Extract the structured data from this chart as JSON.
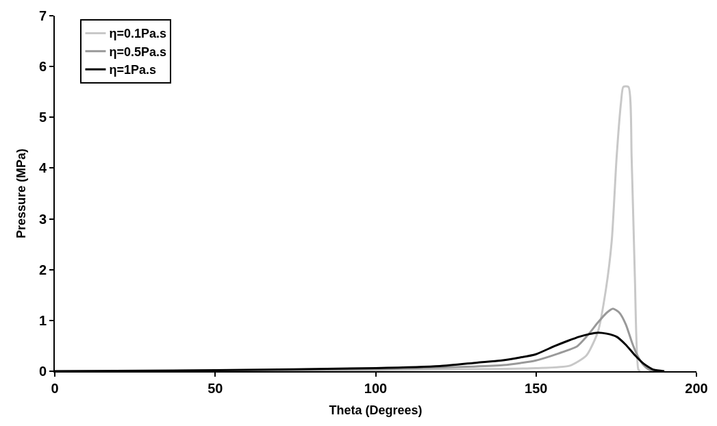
{
  "chart_data": {
    "type": "line",
    "xlabel": "Theta (Degrees)",
    "ylabel": "Pressure (MPa)",
    "xlim": [
      0,
      200
    ],
    "xticks": [
      0,
      50,
      100,
      150,
      200
    ],
    "ylim": [
      0,
      7
    ],
    "yticks": [
      0,
      1,
      2,
      3,
      4,
      5,
      6,
      7
    ],
    "legend": "top left",
    "marker": "none",
    "line_style": "solid",
    "series": [
      {
        "name": "η=0.1Pa.s",
        "color": "#c8c8c8",
        "x": [
          0,
          50,
          100,
          130,
          150,
          160.6,
          165.7,
          169.3,
          171.8,
          173.6,
          175.1,
          176.5,
          177.2,
          178.8,
          179.8,
          180.8,
          181.9,
          182.5
        ],
        "values": [
          0,
          0.01,
          0.02,
          0.04,
          0.06,
          0.11,
          0.31,
          0.78,
          1.62,
          2.57,
          4.2,
          5.3,
          5.6,
          5.6,
          4.2,
          1.86,
          0.03,
          0
        ]
      },
      {
        "name": "η=0.5Pa.s",
        "color": "#999999",
        "x": [
          0,
          50,
          100,
          130,
          140,
          149.8,
          157,
          162.8,
          166,
          169.3,
          172,
          174.0,
          176,
          178,
          180,
          181.6,
          183.5,
          185.2,
          187
        ],
        "values": [
          0,
          0.01,
          0.04,
          0.09,
          0.12,
          0.21,
          0.35,
          0.49,
          0.7,
          0.96,
          1.15,
          1.23,
          1.15,
          0.92,
          0.55,
          0.31,
          0.12,
          0.03,
          0
        ]
      },
      {
        "name": "η=1Pa.s",
        "color": "#000000",
        "x": [
          0,
          50,
          100,
          120,
          131.7,
          138.9,
          145,
          149.8,
          155.6,
          160,
          163.5,
          166.5,
          169.3,
          172,
          175.1,
          178,
          180.9,
          183.5,
          186.6,
          190
        ],
        "values": [
          0,
          0.02,
          0.06,
          0.1,
          0.17,
          0.21,
          0.27,
          0.33,
          0.49,
          0.6,
          0.68,
          0.73,
          0.76,
          0.74,
          0.68,
          0.52,
          0.31,
          0.15,
          0.03,
          0
        ]
      }
    ]
  }
}
